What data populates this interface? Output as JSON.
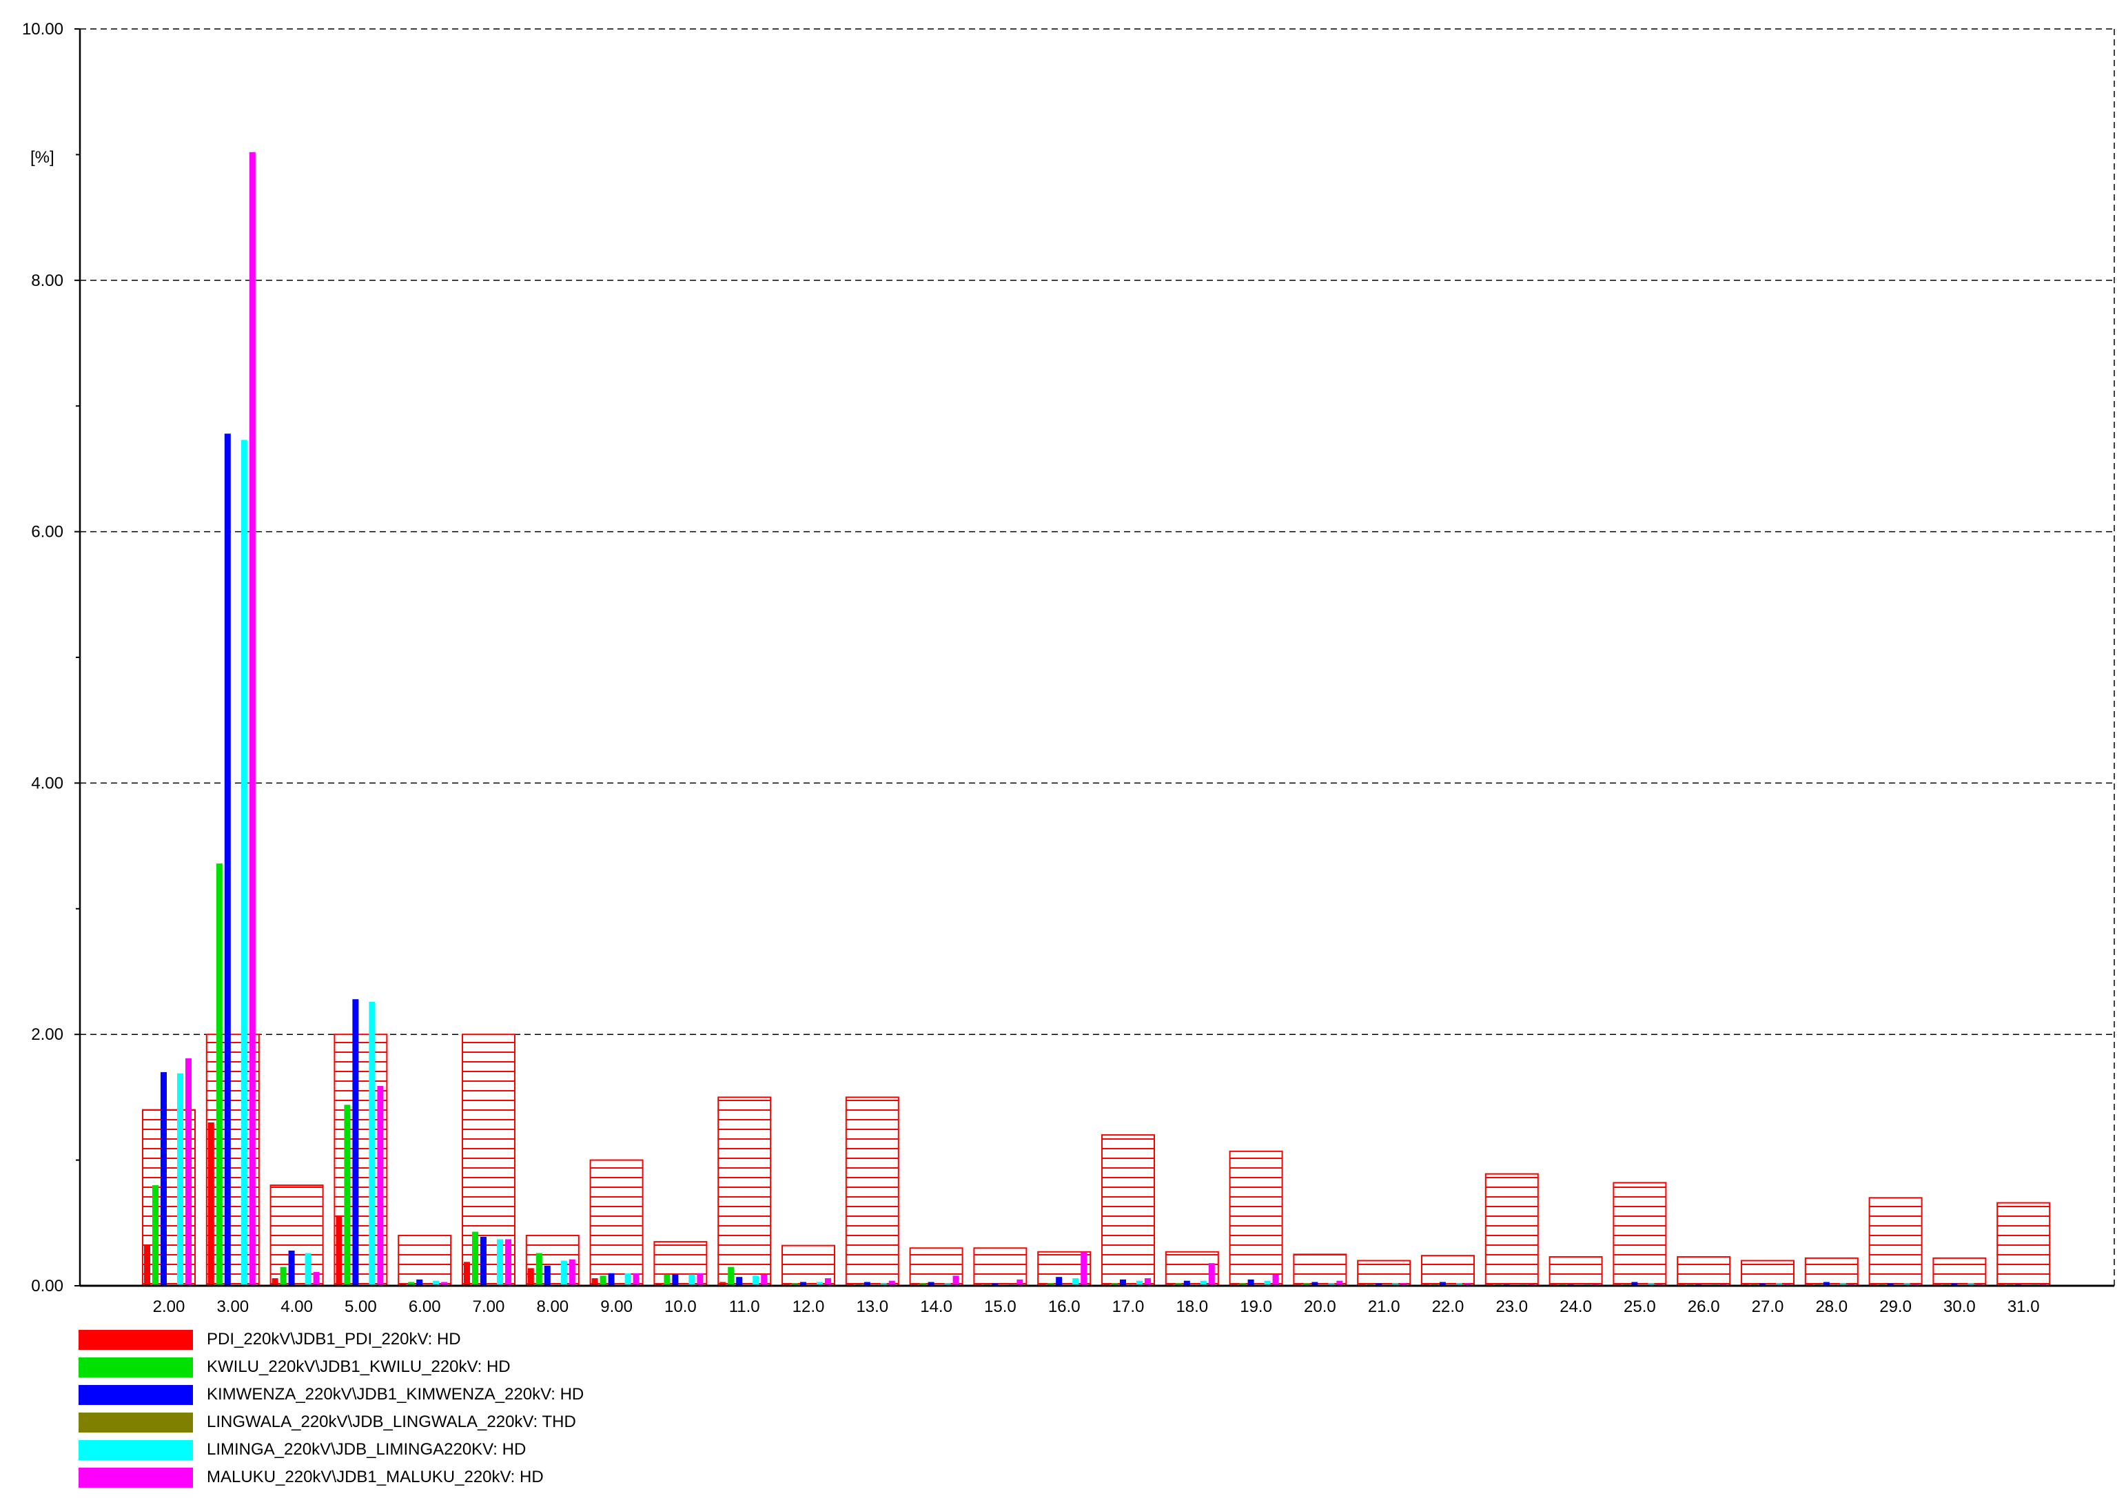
{
  "chart_data": {
    "type": "bar",
    "title": "",
    "xlabel": "",
    "ylabel": "[%]",
    "ylim": [
      0,
      10
    ],
    "y_ticks": [
      "0.00",
      "2.00",
      "4.00",
      "6.00",
      "8.00",
      "10.00"
    ],
    "grid": "horizontal dashed at labeled ticks",
    "legend_position": "bottom-left",
    "categories": [
      "2.00",
      "3.00",
      "4.00",
      "5.00",
      "6.00",
      "7.00",
      "8.00",
      "9.00",
      "10.0",
      "11.0",
      "12.0",
      "13.0",
      "14.0",
      "15.0",
      "16.0",
      "17.0",
      "18.0",
      "19.0",
      "20.0",
      "21.0",
      "22.0",
      "23.0",
      "24.0",
      "25.0",
      "26.0",
      "27.0",
      "28.0",
      "29.0",
      "30.0",
      "31.0"
    ],
    "limits": {
      "style": "red horizontal-hatched rectangle",
      "color": "#ff0000",
      "values": [
        1.4,
        2.0,
        0.8,
        2.0,
        0.4,
        2.0,
        0.4,
        1.0,
        0.35,
        1.5,
        0.32,
        1.5,
        0.3,
        0.3,
        0.27,
        1.2,
        0.27,
        1.07,
        0.25,
        0.2,
        0.24,
        0.89,
        0.23,
        0.82,
        0.23,
        0.2,
        0.22,
        0.7,
        0.22,
        0.66
      ]
    },
    "series": [
      {
        "name": "PDI_220kV\\JDB1_PDI_220kV: HD",
        "color": "#ff0000",
        "values": [
          0.32,
          1.3,
          0.06,
          0.56,
          0.02,
          0.19,
          0.14,
          0.06,
          0.02,
          0.03,
          0.01,
          0.01,
          0.01,
          0.01,
          0.01,
          0.01,
          0.01,
          0.01,
          0.01,
          0.01,
          0.01,
          0.01,
          0.01,
          0.01,
          0.01,
          0.01,
          0.01,
          0.01,
          0.01,
          0.01
        ]
      },
      {
        "name": "KWILU_220kV\\JDB1_KWILU_220kV: HD",
        "color": "#00e000",
        "values": [
          0.8,
          3.36,
          0.15,
          1.44,
          0.03,
          0.43,
          0.26,
          0.08,
          0.09,
          0.15,
          0.02,
          0.01,
          0.02,
          0.01,
          0.02,
          0.02,
          0.02,
          0.02,
          0.02,
          0.01,
          0.01,
          0.01,
          0.01,
          0.01,
          0.01,
          0.01,
          0.01,
          0.01,
          0.01,
          0.01
        ]
      },
      {
        "name": "KIMWENZA_220kV\\JDB1_KIMWENZA_220kV: HD",
        "color": "#0000ff",
        "values": [
          1.7,
          6.78,
          0.28,
          2.28,
          0.05,
          0.39,
          0.16,
          0.1,
          0.09,
          0.07,
          0.03,
          0.03,
          0.03,
          0.02,
          0.07,
          0.05,
          0.04,
          0.05,
          0.03,
          0.02,
          0.03,
          0.01,
          0.01,
          0.03,
          0.01,
          0.02,
          0.03,
          0.02,
          0.02,
          0.01
        ]
      },
      {
        "name": "LINGWALA_220kV\\JDB_LINGWALA_220kV: THD",
        "color": "#808000",
        "values": [
          0,
          0,
          0,
          0,
          0,
          0,
          0,
          0,
          0,
          0,
          0,
          0,
          0,
          0,
          0,
          0,
          0,
          0,
          0,
          0,
          0,
          0,
          0,
          0,
          0,
          0,
          0,
          0,
          0,
          0
        ]
      },
      {
        "name": "LIMINGA_220kV\\JDB_LIMINGA220KV: HD",
        "color": "#00ffff",
        "values": [
          1.69,
          6.73,
          0.26,
          2.26,
          0.04,
          0.37,
          0.2,
          0.1,
          0.09,
          0.08,
          0.03,
          0.02,
          0.02,
          0.01,
          0.06,
          0.04,
          0.04,
          0.04,
          0.02,
          0.02,
          0.02,
          0.01,
          0.01,
          0.02,
          0.01,
          0.02,
          0.02,
          0.02,
          0.02,
          0.01
        ]
      },
      {
        "name": "MALUKU_220kV\\JDB1_MALUKU_220kV: HD",
        "color": "#ff00ff",
        "values": [
          1.81,
          9.02,
          0.11,
          1.59,
          0.03,
          0.37,
          0.21,
          0.1,
          0.1,
          0.09,
          0.06,
          0.04,
          0.08,
          0.05,
          0.27,
          0.06,
          0.18,
          0.09,
          0.04,
          0.02,
          0.02,
          0.01,
          0.01,
          0.01,
          0.01,
          0.01,
          0.01,
          0.01,
          0.01,
          0.01
        ]
      }
    ]
  }
}
